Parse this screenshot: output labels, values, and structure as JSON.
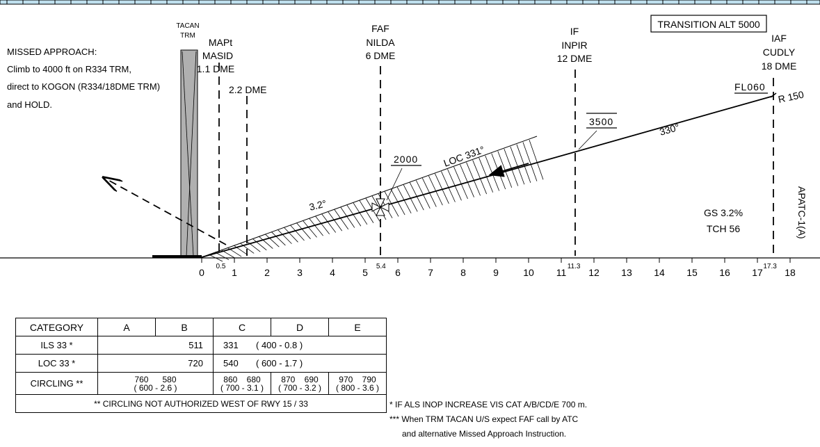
{
  "labels": {
    "tacan_line1": "TACAN",
    "tacan_line2": "TRM",
    "mapt": [
      "MAPt",
      "MASID",
      "1.1 DME"
    ],
    "dme22": "2.2 DME",
    "faf": [
      "FAF",
      "NILDA",
      "6 DME"
    ],
    "if": [
      "IF",
      "INPIR",
      "12 DME"
    ],
    "iaf": [
      "IAF",
      "CUDLY",
      "18 DME"
    ],
    "transition": "TRANSITION ALT 5000",
    "fl060": "FL060",
    "r150": "R 150",
    "alt3500": "3500",
    "course330": "330°",
    "alt2000": "2000",
    "loc": "LOC 331°",
    "gs_angle": "3.2°",
    "gs_pct": "GS 3.2%",
    "tch": "TCH 56",
    "chart_id": "APATC-1(A)"
  },
  "missed_approach": [
    "MISSED APPROACH:",
    "Climb to 4000 ft on R334 TRM,",
    "direct to KOGON  (R334/18DME TRM)",
    "and HOLD."
  ],
  "axis": {
    "ticks": [
      "0",
      "1",
      "2",
      "3",
      "4",
      "5",
      "6",
      "7",
      "8",
      "9",
      "10",
      "11",
      "12",
      "13",
      "14",
      "15",
      "16",
      "17",
      "18"
    ],
    "sub": [
      "0.5",
      "5.4",
      "11.3",
      "17.3"
    ]
  },
  "chart_data": {
    "type": "profile",
    "x_unit": "DME",
    "xlim": [
      0,
      18
    ],
    "fixes": [
      {
        "name": "MASID",
        "role": "MAPt",
        "dme": 1.1
      },
      {
        "name": "",
        "role": "",
        "dme": 2.2
      },
      {
        "name": "NILDA",
        "role": "FAF",
        "dme": 6,
        "marker_dme": 5.4,
        "altitude": 2000
      },
      {
        "name": "INPIR",
        "role": "IF",
        "dme": 12,
        "marker_dme": 11.3,
        "altitude": 3500
      },
      {
        "name": "CUDLY",
        "role": "IAF",
        "dme": 18,
        "marker_dme": 17.3,
        "altitude": "FL060"
      }
    ],
    "glide_slope_deg": 3.2,
    "localizer_course": "331°",
    "inbound_course": "330°",
    "threshold_dme": 0.5
  },
  "minima": {
    "headers": [
      "CATEGORY",
      "A",
      "B",
      "C",
      "D",
      "E"
    ],
    "ils": {
      "label": "ILS 33 *",
      "ab": "511",
      "cde": "331",
      "paren": "( 400 - 0.8 )"
    },
    "loc": {
      "label": "LOC 33 *",
      "ab": "720",
      "cde": "540",
      "paren": "( 600 - 1.7 )"
    },
    "circling": {
      "label": "CIRCLING **",
      "ab": [
        "760",
        "580",
        "( 600 - 2.6 )"
      ],
      "c": [
        "860",
        "680",
        "( 700 - 3.1 )"
      ],
      "d": [
        "870",
        "690",
        "( 700 - 3.2 )"
      ],
      "e": [
        "970",
        "790",
        "( 800 - 3.6 )"
      ]
    },
    "footnote": "** CIRCLING NOT AUTHORIZED WEST OF RWY 15 / 33"
  },
  "notes": [
    "* IF ALS INOP INCREASE VIS CAT A/B/CD/E 700 m.",
    "*** When TRM TACAN U/S expect FAF call by ATC",
    "     and alternative Missed Approach Instruction."
  ]
}
